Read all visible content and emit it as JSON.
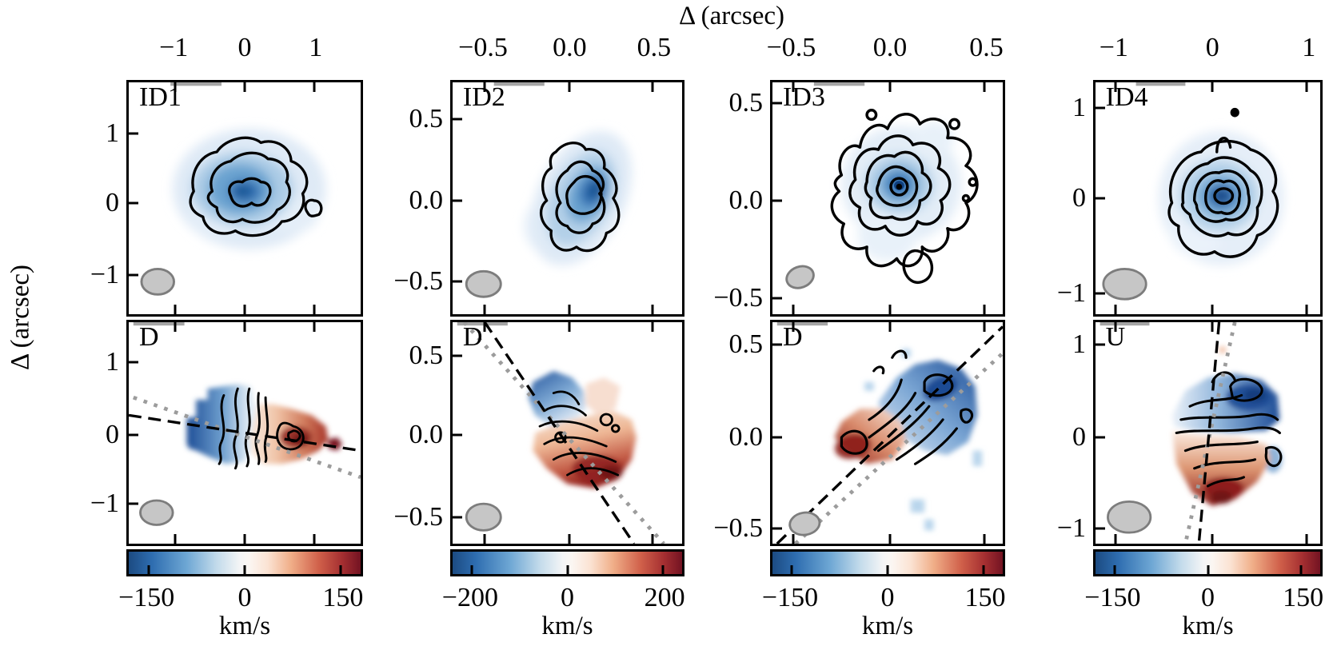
{
  "figure": {
    "top_axis_title": "Δ (arcsec)",
    "left_axis_title": "Δ (arcsec)"
  },
  "columns": [
    {
      "name": "ID1",
      "top_panel_label": "ID1",
      "bottom_panel_label": "D",
      "x_tick_labels": [
        "−1",
        "0",
        "1"
      ],
      "top_y_tick_labels": [
        "1",
        "0",
        "−1"
      ],
      "bottom_y_tick_labels": [
        "1",
        "0",
        "−1"
      ],
      "colorbar_tick_labels": [
        "−150",
        "0",
        "150"
      ],
      "colorbar_unit": "km/s"
    },
    {
      "name": "ID2",
      "top_panel_label": "ID2",
      "bottom_panel_label": "D",
      "x_tick_labels": [
        "−0.5",
        "0.0",
        "0.5"
      ],
      "top_y_tick_labels": [
        "0.5",
        "0.0",
        "−0.5"
      ],
      "bottom_y_tick_labels": [
        "0.5",
        "0.0",
        "−0.5"
      ],
      "colorbar_tick_labels": [
        "−200",
        "0",
        "200"
      ],
      "colorbar_unit": "km/s"
    },
    {
      "name": "ID3",
      "top_panel_label": "ID3",
      "bottom_panel_label": "D",
      "x_tick_labels": [
        "−0.5",
        "0.0",
        "0.5"
      ],
      "top_y_tick_labels": [
        "0.5",
        "0.0",
        "−0.5"
      ],
      "bottom_y_tick_labels": [
        "0.5",
        "0.0",
        "−0.5"
      ],
      "colorbar_tick_labels": [
        "−150",
        "0",
        "150"
      ],
      "colorbar_unit": "km/s"
    },
    {
      "name": "ID4",
      "top_panel_label": "ID4",
      "bottom_panel_label": "U",
      "x_tick_labels": [
        "−1",
        "0",
        "1"
      ],
      "top_y_tick_labels": [
        "1",
        "0",
        "−1"
      ],
      "bottom_y_tick_labels": [
        "1",
        "0",
        "−1"
      ],
      "colorbar_tick_labels": [
        "−150",
        "0",
        "150"
      ],
      "colorbar_unit": "km/s"
    }
  ],
  "chart_data": [
    {
      "type": "heatmap",
      "row": "moment0-intensity",
      "panel_label": "ID1",
      "colormap": "Blues",
      "contour_color": "black",
      "x_ticks_arcsec": [
        -1,
        0,
        1
      ],
      "y_ticks_arcsec": [
        1,
        0,
        -1
      ],
      "axis_unit": "arcsec",
      "features": "clumpy source elongated E-W, 3 contour levels, small secondary clump lower right",
      "beam": "grey ellipse lower left"
    },
    {
      "type": "heatmap",
      "row": "moment0-intensity",
      "panel_label": "ID2",
      "colormap": "Blues",
      "contour_color": "black",
      "x_ticks_arcsec": [
        -0.5,
        0.0,
        0.5
      ],
      "y_ticks_arcsec": [
        0.5,
        0.0,
        -0.5
      ],
      "axis_unit": "arcsec",
      "features": "source elongated NW-SE (tilted), 3 nested contour levels",
      "beam": "grey ellipse lower left"
    },
    {
      "type": "heatmap",
      "row": "moment0-intensity",
      "panel_label": "ID3",
      "colormap": "Blues",
      "contour_color": "black",
      "x_ticks_arcsec": [
        -0.5,
        0.0,
        0.5
      ],
      "y_ticks_arcsec": [
        0.5,
        0.0,
        -0.5
      ],
      "axis_unit": "arcsec",
      "features": "compact bright core with ~5 ragged contour levels and southern extension",
      "beam": "grey ellipse lower left"
    },
    {
      "type": "heatmap",
      "row": "moment0-intensity",
      "panel_label": "ID4",
      "colormap": "Blues",
      "contour_color": "black",
      "x_ticks_arcsec": [
        -1,
        0,
        1
      ],
      "y_ticks_arcsec": [
        1,
        0,
        -1
      ],
      "axis_unit": "arcsec",
      "features": "round compact source with ~5 concentric contours, tiny clump near top",
      "beam": "grey ellipse lower left"
    },
    {
      "type": "heatmap",
      "row": "moment1-velocity",
      "panel_label": "D",
      "colormap": "RdBu_r",
      "colorbar_ticks_km_s": [
        -150,
        0,
        150
      ],
      "colorbar_unit": "km/s",
      "x_ticks_arcsec": [
        -1,
        0,
        1
      ],
      "y_ticks_arcsec": [
        1,
        0,
        -1
      ],
      "axis_unit": "arcsec",
      "velocity_pattern": "blueshifted on left/west, redshifted on right/east",
      "overlays": [
        "black dashed kinematic axis (shallow slope)",
        "grey dotted axis",
        "black iso-velocity contours",
        "grey beam ellipse"
      ]
    },
    {
      "type": "heatmap",
      "row": "moment1-velocity",
      "panel_label": "D",
      "colormap": "RdBu_r",
      "colorbar_ticks_km_s": [
        -200,
        0,
        200
      ],
      "colorbar_unit": "km/s",
      "x_ticks_arcsec": [
        -0.5,
        0.0,
        0.5
      ],
      "y_ticks_arcsec": [
        0.5,
        0.0,
        -0.5
      ],
      "axis_unit": "arcsec",
      "velocity_pattern": "blueshifted top-left, redshifted bottom-right",
      "overlays": [
        "black dashed kinematic axis (steep NW-SE)",
        "grey dotted axis",
        "black iso-velocity contours",
        "grey beam ellipse"
      ]
    },
    {
      "type": "heatmap",
      "row": "moment1-velocity",
      "panel_label": "D",
      "colormap": "RdBu_r",
      "colorbar_ticks_km_s": [
        -150,
        0,
        150
      ],
      "colorbar_unit": "km/s",
      "x_ticks_arcsec": [
        -0.5,
        0.0,
        0.5
      ],
      "y_ticks_arcsec": [
        0.5,
        0.0,
        -0.5
      ],
      "axis_unit": "arcsec",
      "velocity_pattern": "blueshifted top-right, redshifted bottom-left",
      "overlays": [
        "black dashed kinematic axis (SW-NE diagonal)",
        "grey dotted axis",
        "black iso-velocity contours",
        "grey beam ellipse"
      ]
    },
    {
      "type": "heatmap",
      "row": "moment1-velocity",
      "panel_label": "U",
      "colormap": "RdBu_r",
      "colorbar_ticks_km_s": [
        -150,
        0,
        150
      ],
      "colorbar_unit": "km/s",
      "x_ticks_arcsec": [
        -1,
        0,
        1
      ],
      "y_ticks_arcsec": [
        1,
        0,
        -1
      ],
      "axis_unit": "arcsec",
      "velocity_pattern": "blueshifted top, redshifted bottom; near-vertical dashed and dotted axes",
      "overlays": [
        "black dashed kinematic axis (near vertical)",
        "grey dotted axis",
        "black iso-velocity contours",
        "grey beam ellipse"
      ]
    }
  ]
}
